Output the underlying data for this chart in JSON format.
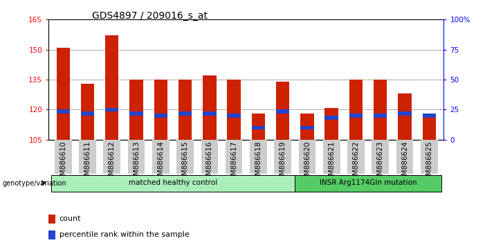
{
  "title": "GDS4897 / 209016_s_at",
  "categories": [
    "GSM886610",
    "GSM886611",
    "GSM886612",
    "GSM886613",
    "GSM886614",
    "GSM886615",
    "GSM886616",
    "GSM886617",
    "GSM886618",
    "GSM886619",
    "GSM886620",
    "GSM886621",
    "GSM886622",
    "GSM886623",
    "GSM886624",
    "GSM886625"
  ],
  "red_values": [
    151,
    133,
    157,
    135,
    135,
    135,
    137,
    135,
    118,
    134,
    118,
    121,
    135,
    135,
    128,
    118
  ],
  "blue_positions": [
    118,
    117,
    119,
    117,
    116,
    117,
    117,
    116,
    110,
    118,
    110,
    115,
    116,
    116,
    117,
    116
  ],
  "blue_heights": [
    2,
    2,
    2,
    2,
    2,
    2,
    2,
    2,
    2,
    2,
    2,
    2,
    2,
    2,
    2,
    2
  ],
  "ymin": 105,
  "ymax": 165,
  "yticks": [
    105,
    120,
    135,
    150,
    165
  ],
  "y2ticks": [
    0,
    25,
    50,
    75,
    100
  ],
  "y2labels": [
    "0",
    "25",
    "50",
    "75",
    "100%"
  ],
  "bar_color": "#cc2200",
  "blue_color": "#2244cc",
  "bar_width": 0.55,
  "group1_label": "matched healthy control",
  "group2_label": "INSR Arg1174Gln mutation",
  "group1_indices": [
    0,
    1,
    2,
    3,
    4,
    5,
    6,
    7,
    8,
    9
  ],
  "group2_indices": [
    10,
    11,
    12,
    13,
    14,
    15
  ],
  "group1_color": "#aaeebb",
  "group2_color": "#55cc66",
  "genotype_label": "genotype/variation",
  "legend_count": "count",
  "legend_percentile": "percentile rank within the sample",
  "tick_label_bg": "#cccccc",
  "bg_color": "#ffffff",
  "plot_bg": "#ffffff",
  "title_fontsize": 10,
  "tick_fontsize": 7.5
}
